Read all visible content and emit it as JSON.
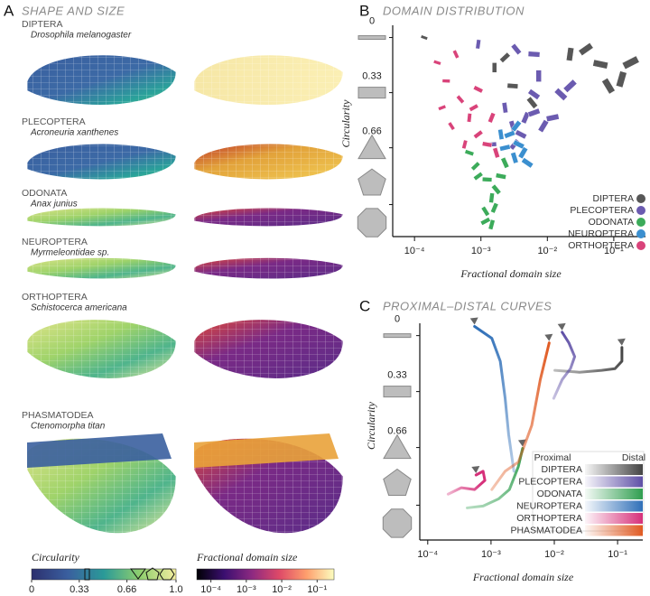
{
  "panel_a": {
    "label": "A",
    "title": "SHAPE AND SIZE",
    "wings": [
      {
        "order": "DIPTERA",
        "species": "Drosophila melanogaster"
      },
      {
        "order": "PLECOPTERA",
        "species": "Acroneuria xanthenes"
      },
      {
        "order": "ODONATA",
        "species": "Anax junius"
      },
      {
        "order": "NEUROPTERA",
        "species": "Myrmeleontidae sp."
      },
      {
        "order": "ORTHOPTERA",
        "species": "Schistocerca americana"
      },
      {
        "order": "PHASMATODEA",
        "species": "Ctenomorpha titan"
      }
    ],
    "colorbars": [
      {
        "label": "Circularity",
        "lim": [
          0,
          1
        ],
        "ticks": [
          0,
          0.33,
          0.66,
          {
            "value": 1,
            "label": "1.0"
          }
        ],
        "colors": [
          "#2c2f6e",
          "#3a5f9f",
          "#2a9a98",
          "#8fcf6e",
          "#f3eea0"
        ]
      },
      {
        "label": "Fractional domain size",
        "log": true,
        "lim": [
          4e-05,
          0.3
        ],
        "ticks": [
          {
            "value": 0.0001,
            "label": "10⁻⁴"
          },
          {
            "value": 0.001,
            "label": "10⁻³"
          },
          {
            "value": 0.01,
            "label": "10⁻²"
          },
          {
            "value": 0.1,
            "label": "10⁻¹"
          }
        ],
        "colors": [
          "#000004",
          "#3b0f70",
          "#8c2981",
          "#de4968",
          "#fe9f6d",
          "#fcfdbf"
        ]
      }
    ]
  },
  "chart_data": [
    {
      "type": "scatter",
      "label": "B",
      "title": "DOMAIN DISTRIBUTION",
      "x_label": "Fractional domain size",
      "y_label": "Circularity",
      "x_log": true,
      "xlim": [
        5e-05,
        0.3
      ],
      "xticks": [
        {
          "value": 0.0001,
          "label": "10⁻⁴"
        },
        {
          "value": 0.001,
          "label": "10⁻³"
        },
        {
          "value": 0.01,
          "label": "10⁻²"
        },
        {
          "value": 0.1,
          "label": "10⁻¹"
        }
      ],
      "ylim": [
        1.17,
        -0.03
      ],
      "yticks": [
        0,
        0.33,
        0.66,
        {
          "value": 1,
          "label": "1.0"
        }
      ],
      "legend": "lower right",
      "series": [
        {
          "name": "DIPTERA",
          "color": "#575757",
          "x": [
            0.0016,
            0.0023,
            0.003,
            0.0059,
            0.022,
            0.038,
            0.063,
            0.083,
            0.13,
            0.18,
            0.00014
          ],
          "values": [
            0.18,
            0.12,
            0.29,
            0.39,
            0.1,
            0.07,
            0.16,
            0.29,
            0.25,
            0.15,
            0.0
          ]
        },
        {
          "name": "PLECOPTERA",
          "color": "#6b5bb0",
          "x": [
            0.0047,
            0.0063,
            0.004,
            0.003,
            0.0087,
            0.012,
            0.0063,
            0.0023,
            0.0032,
            0.00145,
            0.016,
            0.0074,
            0.022,
            0.0063,
            0.0034,
            0.00091
          ],
          "values": [
            0.48,
            0.45,
            0.58,
            0.53,
            0.53,
            0.48,
            0.34,
            0.42,
            0.64,
            0.64,
            0.34,
            0.23,
            0.29,
            0.1,
            0.07,
            0.04
          ]
        },
        {
          "name": "ODONATA",
          "color": "#3cab5a",
          "x": [
            0.00083,
            0.00124,
            0.0017,
            0.00145,
            0.00091,
            0.002,
            0.00117,
            0.00145,
            0.00117,
            0.00067,
            0.0023,
            0.0016
          ],
          "values": [
            0.77,
            0.85,
            0.91,
            0.96,
            0.83,
            0.83,
            1.04,
            1.12,
            1.1,
            0.69,
            0.75,
            1.02
          ]
        },
        {
          "name": "NEUROPTERA",
          "color": "#3b8fcf",
          "x": [
            0.0027,
            0.0037,
            0.0032,
            0.0043,
            0.0023,
            0.005,
            0.002,
            0.0034
          ],
          "values": [
            0.58,
            0.64,
            0.72,
            0.69,
            0.66,
            0.75,
            0.58,
            0.53
          ]
        },
        {
          "name": "ORTHOPTERA",
          "color": "#d9437a",
          "x": [
            0.0003,
            0.00049,
            0.00067,
            0.00091,
            0.00124,
            0.00036,
            0.00057,
            0.00078,
            0.00022,
            0.00042,
            0.00145,
            0.00026,
            0.00091,
            0.0017
          ],
          "values": [
            0.26,
            0.37,
            0.48,
            0.58,
            0.64,
            0.53,
            0.64,
            0.42,
            0.15,
            0.1,
            0.48,
            0.42,
            0.31,
            0.69
          ]
        }
      ]
    },
    {
      "type": "line",
      "label": "C",
      "title": "PROXIMAL–DISTAL CURVES",
      "x_label": "Fractional domain size",
      "y_label": "Circularity",
      "x_log": true,
      "xlim": [
        8e-05,
        0.25
      ],
      "xticks": [
        {
          "value": 0.0001,
          "label": "10⁻⁴"
        },
        {
          "value": 0.001,
          "label": "10⁻³"
        },
        {
          "value": 0.01,
          "label": "10⁻²"
        },
        {
          "value": 0.1,
          "label": "10⁻¹"
        }
      ],
      "ylim": [
        1.2,
        -0.03
      ],
      "yticks": [
        0,
        0.33,
        0.66,
        {
          "value": 1,
          "label": "1.0"
        }
      ],
      "legend": "lower right",
      "legend_header": [
        "Proximal",
        "Distal"
      ],
      "series": [
        {
          "name": "DIPTERA",
          "color": "#444444",
          "x": [
            0.0102,
            0.025,
            0.056,
            0.091,
            0.117,
            0.117
          ],
          "values": [
            0.205,
            0.216,
            0.205,
            0.195,
            0.151,
            0.07
          ]
        },
        {
          "name": "PLECOPTERA",
          "color": "#5e4fa6",
          "x": [
            0.0098,
            0.0133,
            0.018,
            0.021,
            0.017,
            0.0133
          ],
          "values": [
            0.37,
            0.26,
            0.195,
            0.124,
            0.043,
            -0.02
          ]
        },
        {
          "name": "ODONATA",
          "color": "#2f9e4f",
          "x": [
            0.00042,
            0.00075,
            0.00133,
            0.00195,
            0.0027,
            0.00316
          ],
          "values": [
            1.016,
            1.005,
            0.962,
            0.908,
            0.773,
            0.665
          ]
        },
        {
          "name": "NEUROPTERA",
          "color": "#2f6fb8",
          "x": [
            0.0023,
            0.0019,
            0.00167,
            0.0014,
            0.00103,
            0.00055
          ],
          "values": [
            0.8,
            0.584,
            0.368,
            0.151,
            0.016,
            -0.054
          ]
        },
        {
          "name": "ORTHOPTERA",
          "color": "#d6307a",
          "x": [
            0.00021,
            0.00034,
            0.00055,
            0.0008,
            0.00075,
            0.00058
          ],
          "values": [
            0.935,
            0.897,
            0.908,
            0.854,
            0.8,
            0.822
          ]
        },
        {
          "name": "PHASMATODEA",
          "color": "#e05a22",
          "x": [
            0.00103,
            0.00167,
            0.0027,
            0.0044,
            0.006,
            0.0083
          ],
          "values": [
            0.908,
            0.8,
            0.746,
            0.53,
            0.26,
            0.043
          ]
        }
      ]
    }
  ]
}
